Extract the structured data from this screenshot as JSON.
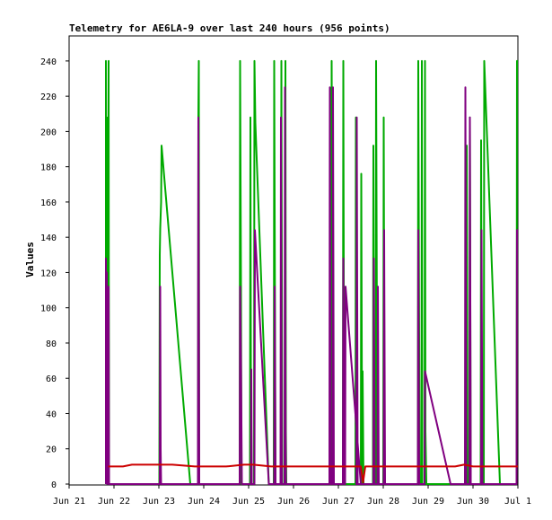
{
  "chart_data": {
    "type": "line",
    "title": "Telemetry for AE6LA-9 over last 240 hours (956 points)",
    "ylabel": "Values",
    "xlabel": "",
    "ylim": [
      0,
      250
    ],
    "xlim": [
      "Jun 21",
      "Jul 1"
    ],
    "x_tick_labels": [
      "Jun 21",
      "Jun 22",
      "Jun 23",
      "Jun 24",
      "Jun 25",
      "Jun 26",
      "Jun 27",
      "Jun 28",
      "Jun 29",
      "Jun 30",
      "Jul 1"
    ],
    "y_ticks": [
      0,
      20,
      40,
      60,
      80,
      100,
      120,
      140,
      160,
      180,
      200,
      220,
      240
    ],
    "grid": false,
    "x_unit": "days since Jun 21 00:00",
    "series": [
      {
        "color": "#00aa00",
        "points": [
          [
            0.82,
            0
          ],
          [
            0.82,
            240
          ],
          [
            0.83,
            96
          ],
          [
            0.84,
            208
          ],
          [
            0.85,
            120
          ],
          [
            0.86,
            192
          ],
          [
            0.87,
            112
          ],
          [
            0.88,
            240
          ],
          [
            0.89,
            0
          ],
          [
            2.01,
            0
          ],
          [
            2.02,
            130
          ],
          [
            2.03,
            145
          ],
          [
            2.05,
            160
          ],
          [
            2.06,
            192
          ],
          [
            2.7,
            0
          ],
          [
            2.8,
            0
          ],
          [
            2.87,
            0
          ],
          [
            2.88,
            208
          ],
          [
            2.89,
            240
          ],
          [
            2.9,
            0
          ],
          [
            3.8,
            0
          ],
          [
            3.81,
            240
          ],
          [
            3.83,
            112
          ],
          [
            3.84,
            0
          ],
          [
            4.03,
            0
          ],
          [
            4.04,
            208
          ],
          [
            4.05,
            65
          ],
          [
            4.07,
            0
          ],
          [
            4.12,
            0
          ],
          [
            4.13,
            240
          ],
          [
            4.15,
            205
          ],
          [
            4.45,
            0
          ],
          [
            4.56,
            0
          ],
          [
            4.57,
            240
          ],
          [
            4.6,
            0
          ],
          [
            4.72,
            0
          ],
          [
            4.73,
            240
          ],
          [
            4.75,
            0
          ],
          [
            4.81,
            0
          ],
          [
            4.82,
            240
          ],
          [
            4.83,
            30
          ],
          [
            4.84,
            0
          ],
          [
            5.84,
            0
          ],
          [
            5.85,
            240
          ],
          [
            5.87,
            80
          ],
          [
            5.89,
            0
          ],
          [
            6.1,
            0
          ],
          [
            6.11,
            240
          ],
          [
            6.13,
            0
          ],
          [
            6.38,
            0
          ],
          [
            6.39,
            208
          ],
          [
            6.42,
            0
          ],
          [
            6.5,
            0
          ],
          [
            6.51,
            176
          ],
          [
            6.53,
            0
          ],
          [
            6.53,
            0
          ],
          [
            6.54,
            64
          ],
          [
            6.56,
            0
          ],
          [
            6.77,
            0
          ],
          [
            6.78,
            192
          ],
          [
            6.8,
            0
          ],
          [
            6.83,
            0
          ],
          [
            6.84,
            240
          ],
          [
            6.87,
            0
          ],
          [
            7.0,
            0
          ],
          [
            7.01,
            208
          ],
          [
            7.03,
            0
          ],
          [
            7.77,
            0
          ],
          [
            7.78,
            240
          ],
          [
            7.79,
            165
          ],
          [
            7.81,
            0
          ],
          [
            7.85,
            0
          ],
          [
            7.86,
            240
          ],
          [
            7.87,
            0
          ],
          [
            7.92,
            0
          ],
          [
            7.93,
            240
          ],
          [
            7.94,
            30
          ],
          [
            7.96,
            0
          ],
          [
            8.85,
            0
          ],
          [
            8.86,
            192
          ],
          [
            8.88,
            0
          ],
          [
            8.92,
            0
          ],
          [
            8.93,
            208
          ],
          [
            8.95,
            0
          ],
          [
            9.17,
            0
          ],
          [
            9.18,
            195
          ],
          [
            9.2,
            0
          ],
          [
            9.24,
            0
          ],
          [
            9.25,
            240
          ],
          [
            9.6,
            0
          ],
          [
            9.97,
            0
          ],
          [
            9.98,
            240
          ],
          [
            10.0,
            240
          ]
        ]
      },
      {
        "color": "#800080",
        "points": [
          [
            0.82,
            0
          ],
          [
            0.82,
            128
          ],
          [
            0.83,
            32
          ],
          [
            0.84,
            120
          ],
          [
            0.85,
            0
          ],
          [
            0.88,
            112
          ],
          [
            0.89,
            0
          ],
          [
            2.02,
            0
          ],
          [
            2.03,
            112
          ],
          [
            2.04,
            20
          ],
          [
            2.05,
            0
          ],
          [
            2.87,
            0
          ],
          [
            2.88,
            208
          ],
          [
            2.89,
            112
          ],
          [
            2.9,
            0
          ],
          [
            3.8,
            0
          ],
          [
            3.81,
            112
          ],
          [
            3.83,
            70
          ],
          [
            3.85,
            0
          ],
          [
            4.05,
            0
          ],
          [
            4.06,
            65
          ],
          [
            4.07,
            0
          ],
          [
            4.13,
            0
          ],
          [
            4.14,
            144
          ],
          [
            4.45,
            0
          ],
          [
            4.57,
            0
          ],
          [
            4.58,
            112
          ],
          [
            4.6,
            0
          ],
          [
            4.71,
            0
          ],
          [
            4.72,
            208
          ],
          [
            4.74,
            0
          ],
          [
            4.8,
            0
          ],
          [
            4.81,
            225
          ],
          [
            4.82,
            60
          ],
          [
            4.83,
            0
          ],
          [
            5.8,
            0
          ],
          [
            5.81,
            225
          ],
          [
            5.83,
            0
          ],
          [
            5.87,
            0
          ],
          [
            5.88,
            225
          ],
          [
            5.9,
            0
          ],
          [
            6.1,
            0
          ],
          [
            6.11,
            128
          ],
          [
            6.13,
            0
          ],
          [
            6.15,
            0
          ],
          [
            6.16,
            112
          ],
          [
            6.5,
            0
          ],
          [
            6.4,
            0
          ],
          [
            6.41,
            208
          ],
          [
            6.43,
            0
          ],
          [
            6.78,
            0
          ],
          [
            6.79,
            128
          ],
          [
            6.81,
            0
          ],
          [
            6.87,
            0
          ],
          [
            6.88,
            112
          ],
          [
            6.9,
            0
          ],
          [
            7.01,
            0
          ],
          [
            7.02,
            144
          ],
          [
            7.04,
            0
          ],
          [
            7.77,
            0
          ],
          [
            7.78,
            144
          ],
          [
            7.8,
            0
          ],
          [
            7.92,
            0
          ],
          [
            7.93,
            64
          ],
          [
            8.5,
            0
          ],
          [
            8.82,
            0
          ],
          [
            8.83,
            225
          ],
          [
            8.85,
            0
          ],
          [
            8.92,
            0
          ],
          [
            8.93,
            208
          ],
          [
            8.95,
            0
          ],
          [
            9.18,
            0
          ],
          [
            9.19,
            144
          ],
          [
            9.21,
            0
          ],
          [
            9.97,
            0
          ],
          [
            9.98,
            144
          ],
          [
            10.0,
            144
          ]
        ]
      },
      {
        "color": "#cc0000",
        "points": [
          [
            0.87,
            10
          ],
          [
            1.2,
            10
          ],
          [
            1.4,
            11
          ],
          [
            1.8,
            11
          ],
          [
            2.05,
            11
          ],
          [
            2.3,
            11
          ],
          [
            2.8,
            10
          ],
          [
            3.5,
            10
          ],
          [
            3.9,
            11
          ],
          [
            4.1,
            11
          ],
          [
            4.5,
            10
          ],
          [
            5.0,
            10
          ],
          [
            5.5,
            10
          ],
          [
            6.0,
            10
          ],
          [
            6.3,
            10
          ],
          [
            6.5,
            10
          ],
          [
            6.55,
            1
          ],
          [
            6.6,
            10
          ],
          [
            7.0,
            10
          ],
          [
            7.5,
            10
          ],
          [
            8.0,
            10
          ],
          [
            8.6,
            10
          ],
          [
            8.8,
            11
          ],
          [
            9.0,
            10
          ],
          [
            9.5,
            10
          ],
          [
            10.0,
            10
          ]
        ]
      }
    ]
  }
}
